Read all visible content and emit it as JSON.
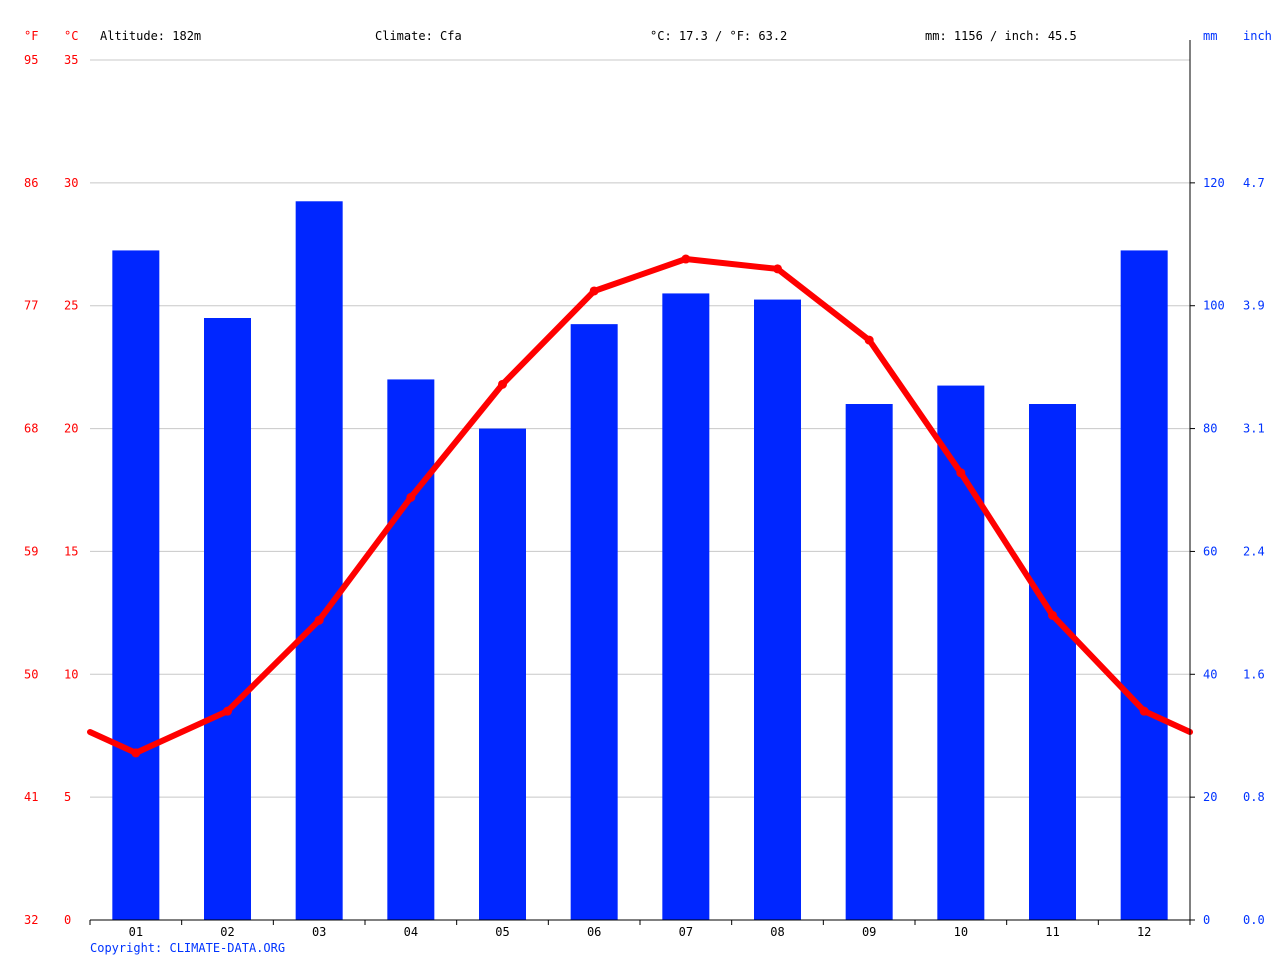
{
  "header": {
    "unit_f": "°F",
    "unit_c": "°C",
    "altitude": "Altitude: 182m",
    "climate": "Climate: Cfa",
    "avg_temp": "°C: 17.3 / °F: 63.2",
    "precip_total": "mm: 1156 / inch: 45.5",
    "unit_mm": "mm",
    "unit_inch": "inch"
  },
  "copyright": "Copyright: CLIMATE-DATA.ORG",
  "colors": {
    "bars": "#0026ff",
    "line": "#ff0000",
    "grid": "#c8c8c8",
    "temp_labels": "#ff0000",
    "precip_labels": "#0033ff"
  },
  "chart_data": {
    "type": "bar",
    "categories": [
      "01",
      "02",
      "03",
      "04",
      "05",
      "06",
      "07",
      "08",
      "09",
      "10",
      "11",
      "12"
    ],
    "series": [
      {
        "unit": "mm",
        "values": [
          109,
          98,
          117,
          88,
          80,
          97,
          102,
          101,
          84,
          87,
          84,
          109
        ]
      },
      {
        "unit": "°C",
        "type": "line",
        "values": [
          6.8,
          8.5,
          12.2,
          17.2,
          21.8,
          25.6,
          26.9,
          26.5,
          23.6,
          18.2,
          12.4,
          8.5
        ]
      }
    ],
    "temp_ylim": [
      0,
      35
    ],
    "precip_ylim": [
      0,
      140
    ],
    "temp_ticks_c": [
      "0",
      "5",
      "10",
      "15",
      "20",
      "25",
      "30",
      "35"
    ],
    "temp_ticks_f": [
      "32",
      "41",
      "50",
      "59",
      "68",
      "77",
      "86",
      "95"
    ],
    "precip_ticks_mm": [
      "0",
      "20",
      "40",
      "60",
      "80",
      "100",
      "120"
    ],
    "precip_ticks_inch": [
      "0.0",
      "0.8",
      "1.6",
      "2.4",
      "3.1",
      "3.9",
      "4.7"
    ],
    "grid": true
  }
}
